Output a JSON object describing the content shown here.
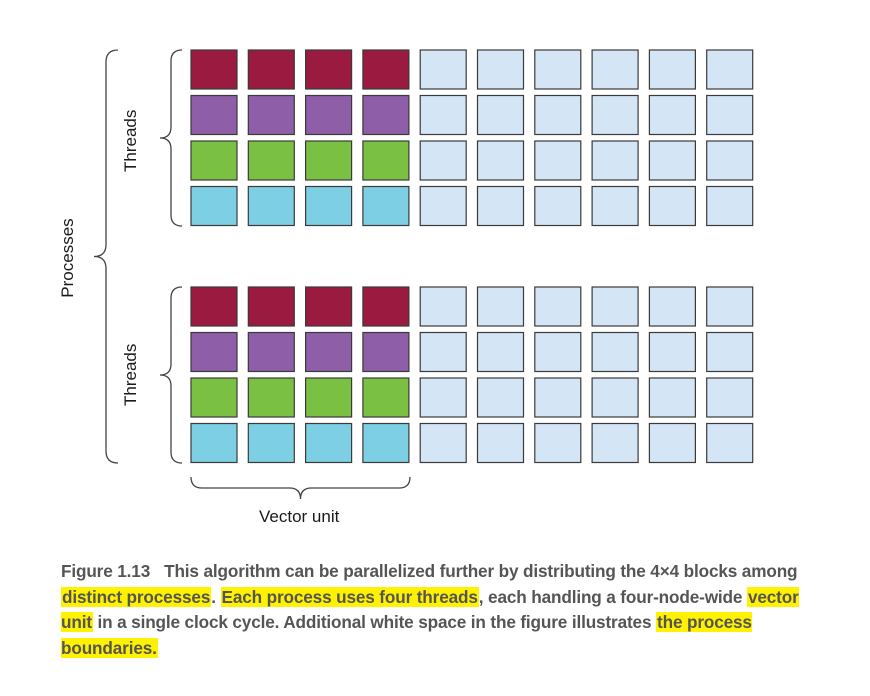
{
  "figure": {
    "processes_label": "Processes",
    "threads_label": "Threads",
    "vector_unit_label": "Vector unit",
    "grid": {
      "process_groups": 2,
      "rows_per_group": 4,
      "columns": 10,
      "active_columns": 4
    },
    "colors": {
      "thread_rows": [
        "#9b1b40",
        "#8e5ea8",
        "#7ac143",
        "#7dd0e3"
      ],
      "idle_cell": "#d4e5f5",
      "cell_border": "#3a3a3a",
      "bracket": "#444444"
    }
  },
  "caption": {
    "figure_number": "Figure 1.13",
    "part1": "This algorithm can be parallelized further by distributing the 4×4 blocks among ",
    "highlight1": "distinct processes",
    "part2": ". ",
    "highlight2": "Each process uses four threads",
    "part3": ", each handling a four-node-wide ",
    "highlight3": "vector unit",
    "part4": " in a single clock cycle. Additional white space in the figure illustrates ",
    "highlight4": "the process boundaries."
  }
}
